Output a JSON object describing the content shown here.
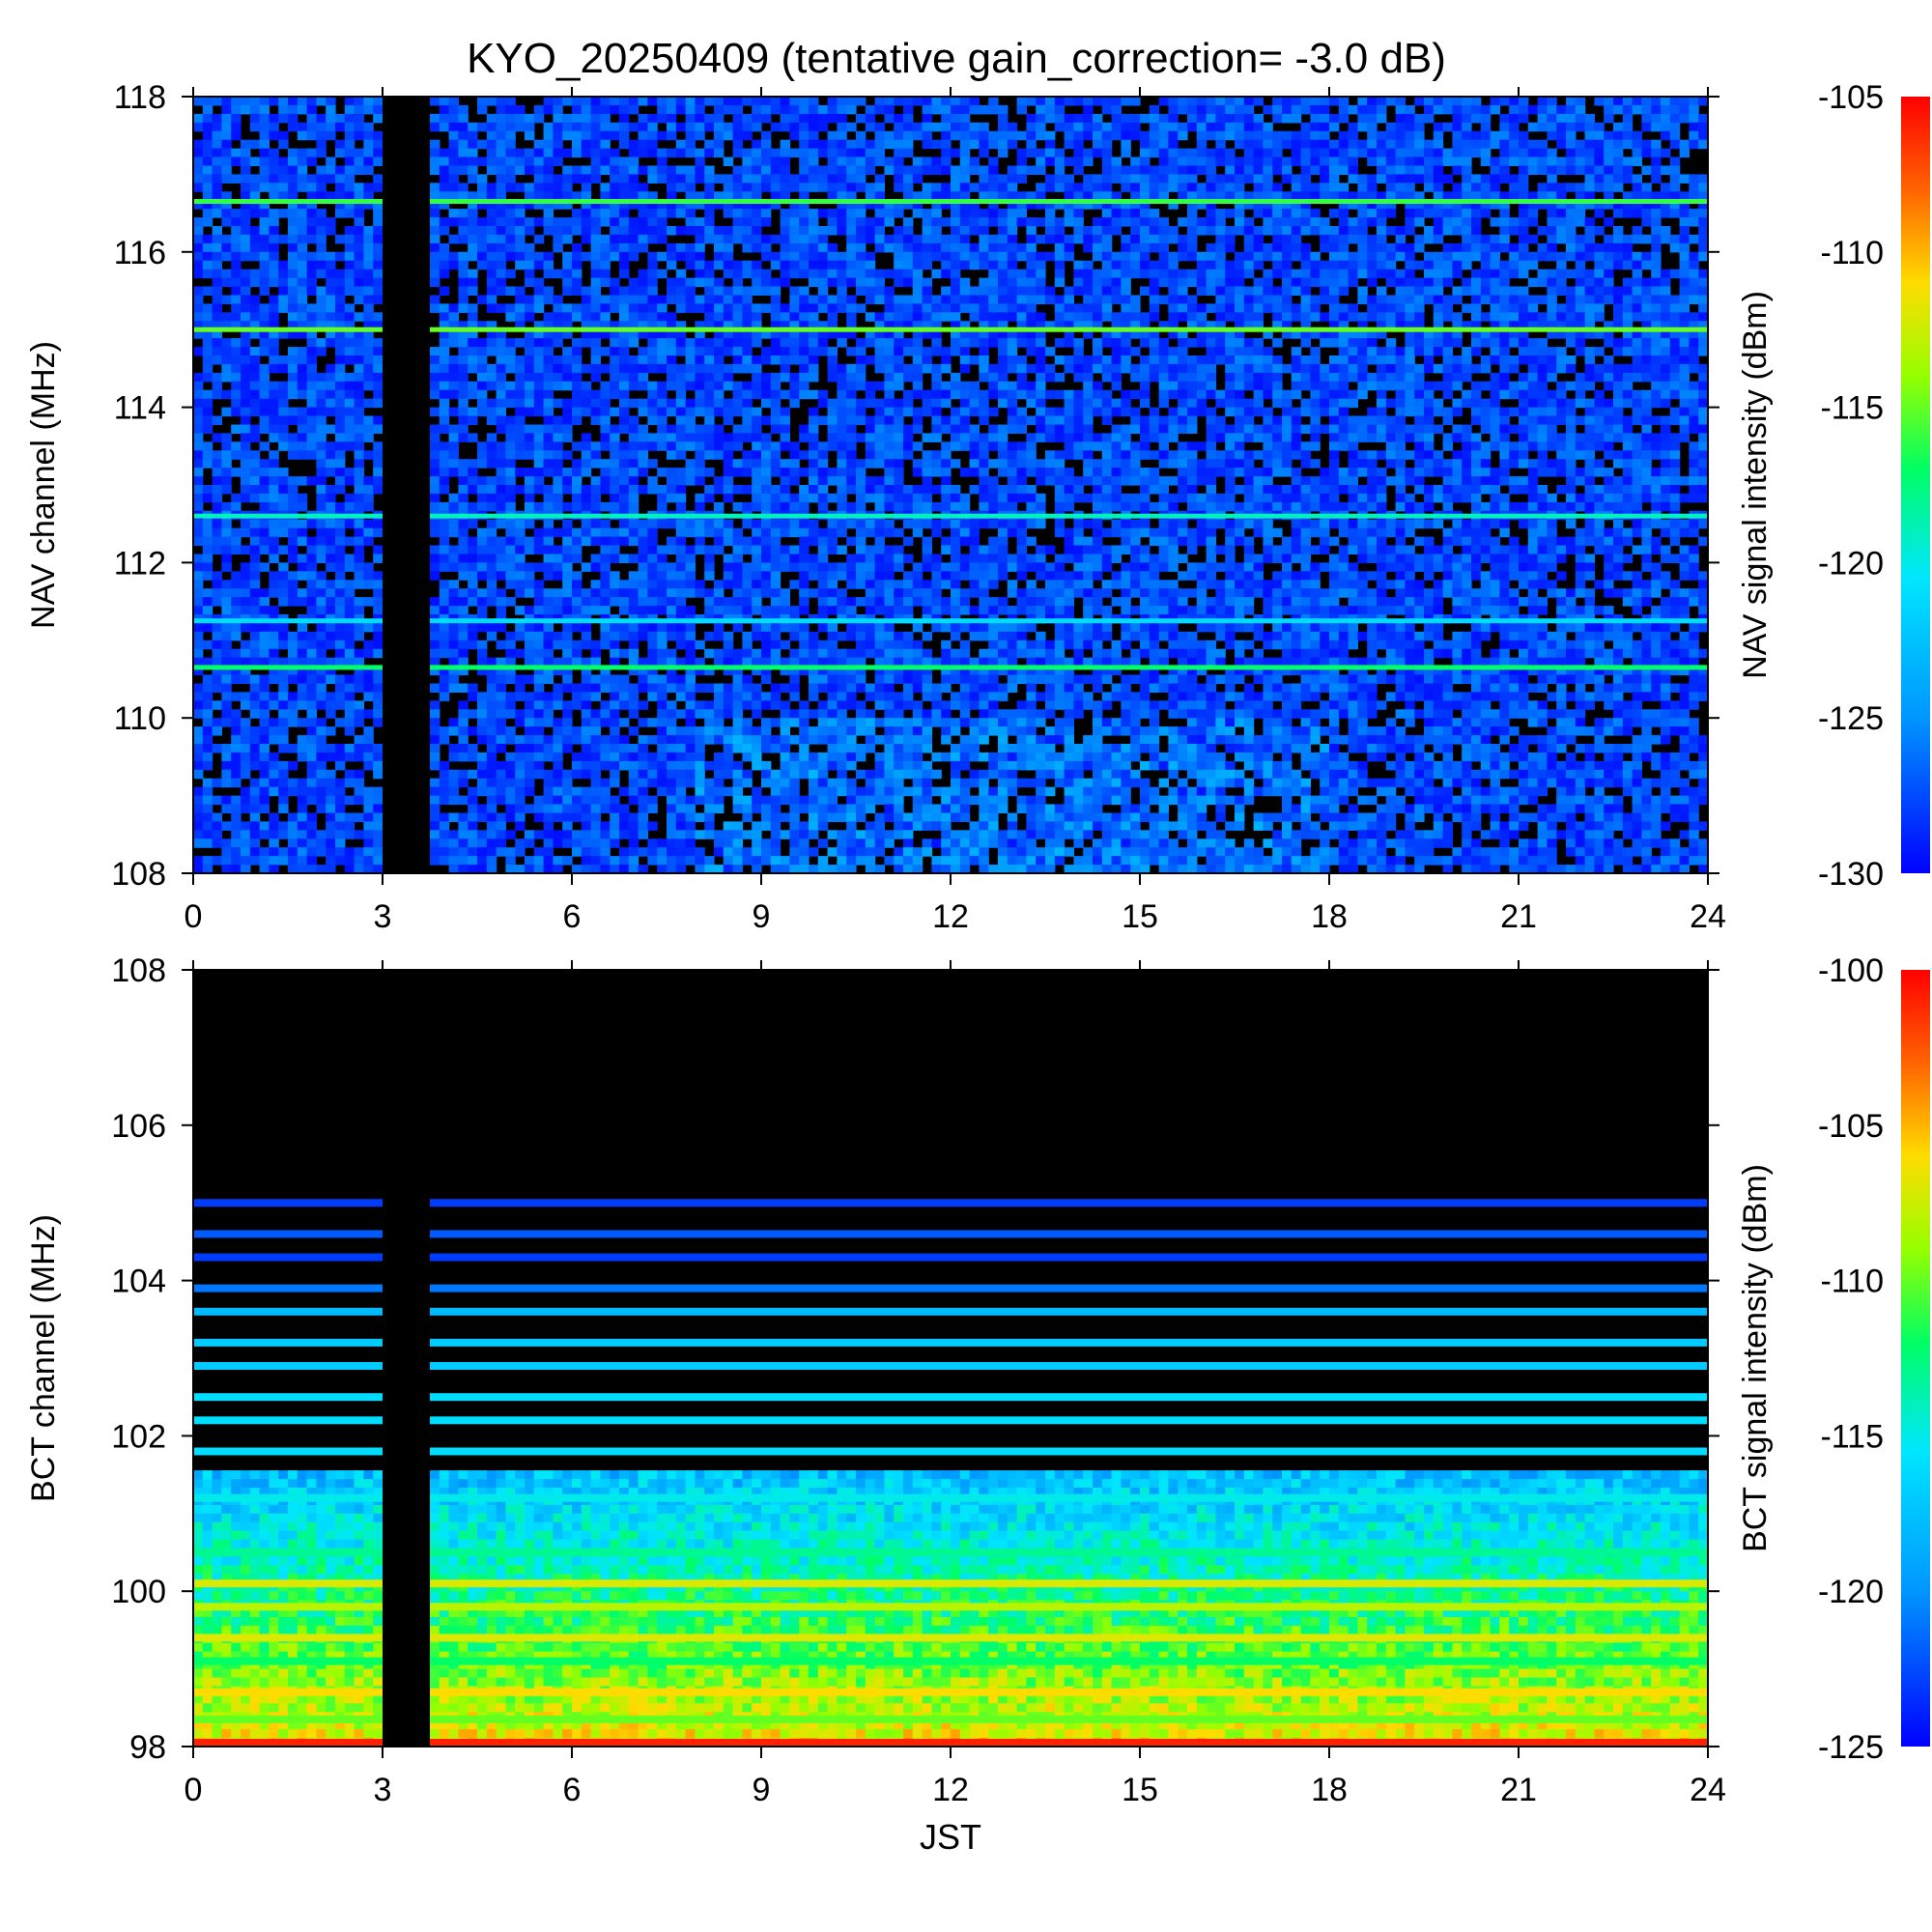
{
  "title": "KYO_20250409 (tentative gain_correction= -3.0 dB)",
  "chart_data": [
    {
      "type": "heatmap",
      "panel": "top",
      "ylabel": "NAV channel (MHz)",
      "xlabel": "",
      "xlim": [
        0,
        24
      ],
      "ylim": [
        108,
        118
      ],
      "xticks": [
        "0",
        "3",
        "6",
        "9",
        "12",
        "15",
        "18",
        "21",
        "24"
      ],
      "yticks": [
        "108",
        "110",
        "112",
        "114",
        "116",
        "118"
      ],
      "colorbar": {
        "label": "NAV signal intensity (dBm)",
        "range": [
          -130,
          -105
        ],
        "ticks": [
          "-130",
          "-125",
          "-120",
          "-115",
          "-110",
          "-105"
        ]
      },
      "data_gap_jst": [
        3.0,
        3.75
      ],
      "background_dbm": -127.5,
      "strong_channels": [
        {
          "freq_mhz": 116.65,
          "dbm": -116
        },
        {
          "freq_mhz": 115.0,
          "dbm": -115
        },
        {
          "freq_mhz": 112.6,
          "dbm": -119
        },
        {
          "freq_mhz": 111.25,
          "dbm": -121
        },
        {
          "freq_mhz": 110.65,
          "dbm": -117
        }
      ]
    },
    {
      "type": "heatmap",
      "panel": "bottom",
      "ylabel": "BCT channel (MHz)",
      "xlabel": "JST",
      "xlim": [
        0,
        24
      ],
      "ylim": [
        98,
        108
      ],
      "xticks": [
        "0",
        "3",
        "6",
        "9",
        "12",
        "15",
        "18",
        "21",
        "24"
      ],
      "yticks": [
        "98",
        "100",
        "102",
        "104",
        "106",
        "108"
      ],
      "colorbar": {
        "label": "BCT signal intensity (dBm)",
        "range": [
          -125,
          -100
        ],
        "ticks": [
          "-125",
          "-120",
          "-115",
          "-110",
          "-105",
          "-100"
        ]
      },
      "data_gap_jst": [
        3.0,
        3.75
      ],
      "no_signal_above_mhz": 105.1,
      "strong_channels": [
        {
          "freq_mhz": 105.0,
          "dbm": -123
        },
        {
          "freq_mhz": 104.6,
          "dbm": -122
        },
        {
          "freq_mhz": 104.3,
          "dbm": -123
        },
        {
          "freq_mhz": 103.9,
          "dbm": -121
        },
        {
          "freq_mhz": 103.6,
          "dbm": -118
        },
        {
          "freq_mhz": 103.2,
          "dbm": -117
        },
        {
          "freq_mhz": 102.9,
          "dbm": -117
        },
        {
          "freq_mhz": 102.5,
          "dbm": -116
        },
        {
          "freq_mhz": 102.2,
          "dbm": -116
        },
        {
          "freq_mhz": 101.8,
          "dbm": -116
        },
        {
          "freq_mhz": 101.2,
          "dbm": -115
        },
        {
          "freq_mhz": 100.5,
          "dbm": -113
        },
        {
          "freq_mhz": 100.1,
          "dbm": -107
        },
        {
          "freq_mhz": 99.8,
          "dbm": -108
        },
        {
          "freq_mhz": 99.4,
          "dbm": -107
        },
        {
          "freq_mhz": 99.1,
          "dbm": -112
        },
        {
          "freq_mhz": 98.7,
          "dbm": -106
        },
        {
          "freq_mhz": 98.35,
          "dbm": -110
        },
        {
          "freq_mhz": 98.05,
          "dbm": -101
        }
      ]
    }
  ]
}
